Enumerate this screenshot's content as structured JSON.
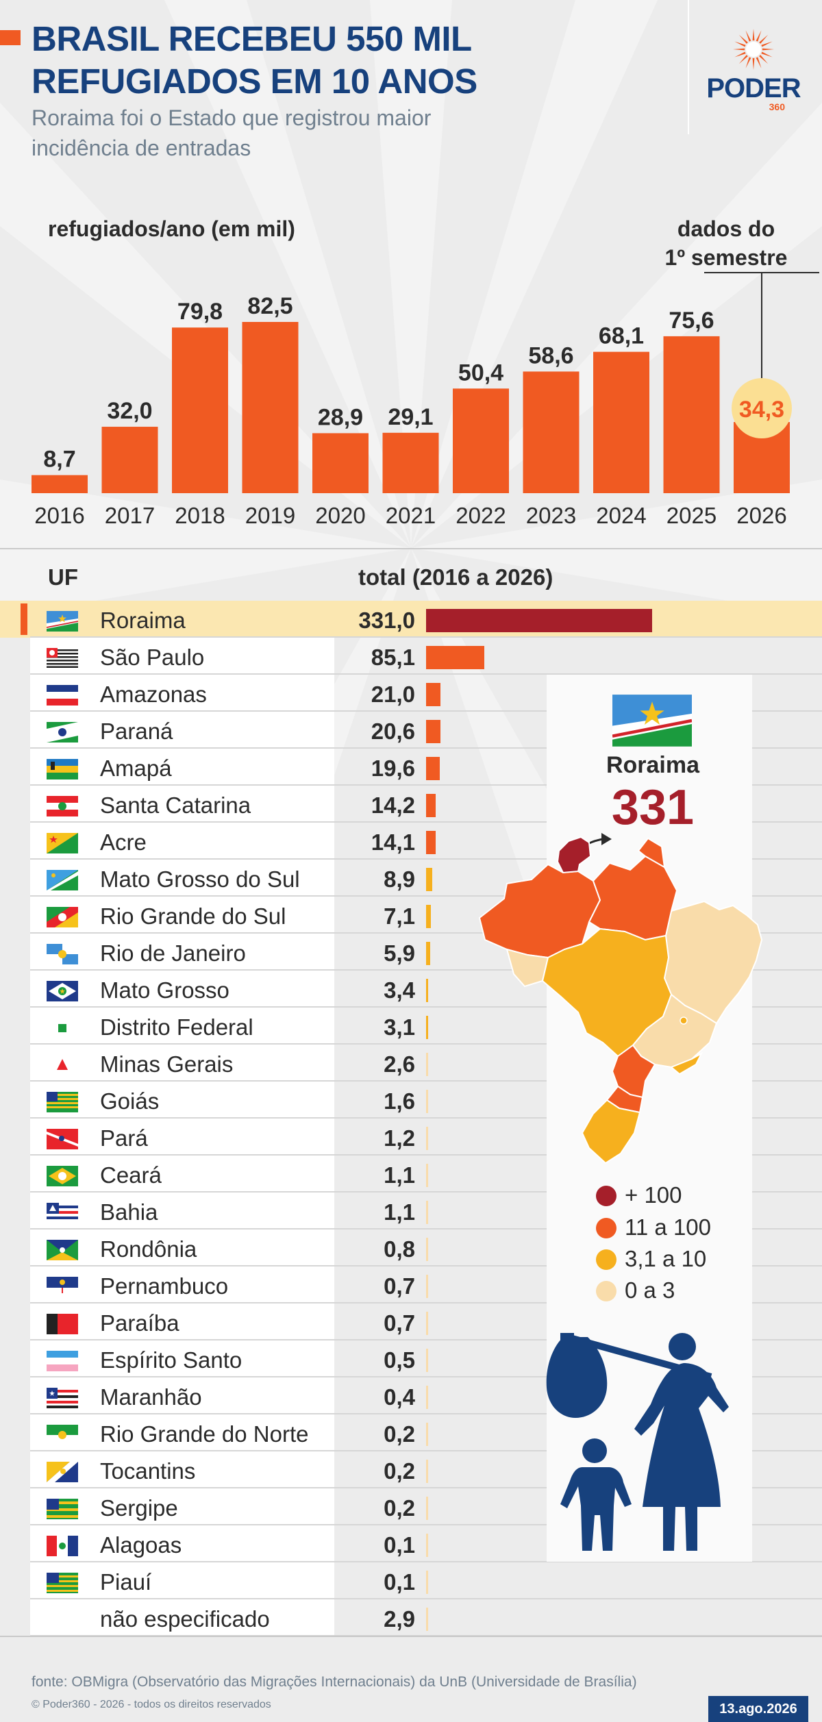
{
  "header": {
    "title_line1": "BRASIL RECEBEU 550 MIL",
    "title_line2": "REFUGIADOS EM 10 ANOS",
    "subtitle": "Roraima foi o Estado que registrou maior incidência de entradas",
    "logo_text": "PODER",
    "logo_sub": "360"
  },
  "chart_data": [
    {
      "type": "bar",
      "title": "refugiados/ano (em mil)",
      "categories": [
        "2016",
        "2017",
        "2018",
        "2019",
        "2020",
        "2021",
        "2022",
        "2023",
        "2024",
        "2025",
        "2026"
      ],
      "values": [
        8.7,
        32.0,
        79.8,
        82.5,
        28.9,
        29.1,
        50.4,
        58.6,
        68.1,
        75.6,
        34.3
      ],
      "value_labels": [
        "8,7",
        "32,0",
        "79,8",
        "82,5",
        "28,9",
        "29,1",
        "50,4",
        "58,6",
        "68,1",
        "75,6",
        "34,3"
      ],
      "annotation": {
        "category": "2026",
        "line1": "dados do",
        "line2": "1º semestre"
      },
      "ylim": [
        0,
        82.5
      ],
      "color": "#f05a22",
      "highlight_color": "#fbdf93"
    },
    {
      "type": "bar",
      "orientation": "horizontal",
      "title": "total (2016 a 2026)",
      "category_header": "UF",
      "rows": [
        {
          "uf": "Roraima",
          "label": "331,0",
          "value": 331.0,
          "flag": "roraima",
          "highlight": true
        },
        {
          "uf": "São Paulo",
          "label": "85,1",
          "value": 85.1,
          "flag": "sao-paulo"
        },
        {
          "uf": "Amazonas",
          "label": "21,0",
          "value": 21.0,
          "flag": "amazonas"
        },
        {
          "uf": "Paraná",
          "label": "20,6",
          "value": 20.6,
          "flag": "parana"
        },
        {
          "uf": "Amapá",
          "label": "19,6",
          "value": 19.6,
          "flag": "amapa"
        },
        {
          "uf": "Santa Catarina",
          "label": "14,2",
          "value": 14.2,
          "flag": "santa-catarina"
        },
        {
          "uf": "Acre",
          "label": "14,1",
          "value": 14.1,
          "flag": "acre"
        },
        {
          "uf": "Mato Grosso do Sul",
          "label": "8,9",
          "value": 8.9,
          "flag": "mato-grosso-do-sul"
        },
        {
          "uf": "Rio Grande do Sul",
          "label": "7,1",
          "value": 7.1,
          "flag": "rio-grande-do-sul"
        },
        {
          "uf": "Rio de Janeiro",
          "label": "5,9",
          "value": 5.9,
          "flag": "rio-de-janeiro"
        },
        {
          "uf": "Mato Grosso",
          "label": "3,4",
          "value": 3.4,
          "flag": "mato-grosso"
        },
        {
          "uf": "Distrito Federal",
          "label": "3,1",
          "value": 3.1,
          "flag": "distrito-federal"
        },
        {
          "uf": "Minas Gerais",
          "label": "2,6",
          "value": 2.6,
          "flag": "minas-gerais"
        },
        {
          "uf": "Goiás",
          "label": "1,6",
          "value": 1.6,
          "flag": "goias"
        },
        {
          "uf": "Pará",
          "label": "1,2",
          "value": 1.2,
          "flag": "para"
        },
        {
          "uf": "Ceará",
          "label": "1,1",
          "value": 1.1,
          "flag": "ceara"
        },
        {
          "uf": "Bahia",
          "label": "1,1",
          "value": 1.1,
          "flag": "bahia"
        },
        {
          "uf": "Rondônia",
          "label": "0,8",
          "value": 0.8,
          "flag": "rondonia"
        },
        {
          "uf": "Pernambuco",
          "label": "0,7",
          "value": 0.7,
          "flag": "pernambuco"
        },
        {
          "uf": "Paraíba",
          "label": "0,7",
          "value": 0.7,
          "flag": "paraiba"
        },
        {
          "uf": "Espírito Santo",
          "label": "0,5",
          "value": 0.5,
          "flag": "espirito-santo"
        },
        {
          "uf": "Maranhão",
          "label": "0,4",
          "value": 0.4,
          "flag": "maranhao"
        },
        {
          "uf": "Rio Grande do Norte",
          "label": "0,2",
          "value": 0.2,
          "flag": "rio-grande-do-norte"
        },
        {
          "uf": "Tocantins",
          "label": "0,2",
          "value": 0.2,
          "flag": "tocantins"
        },
        {
          "uf": "Sergipe",
          "label": "0,2",
          "value": 0.2,
          "flag": "sergipe"
        },
        {
          "uf": "Alagoas",
          "label": "0,1",
          "value": 0.1,
          "flag": "alagoas"
        },
        {
          "uf": "Piauí",
          "label": "0,1",
          "value": 0.1,
          "flag": "piaui"
        },
        {
          "uf": "não especificado",
          "label": "2,9",
          "value": 2.9,
          "flag": ""
        }
      ],
      "color_scale": {
        "above_100": "#a51f2a",
        "from_11": "#f05a22",
        "from_3_1": "#f6b01e",
        "up_to_3": "#f9dcaa"
      }
    }
  ],
  "map": {
    "name": "Roraima",
    "value": "331",
    "legend": [
      {
        "label": "+ 100",
        "color": "#a51f2a"
      },
      {
        "label": "11 a 100",
        "color": "#f05a22"
      },
      {
        "label": "3,1 a 10",
        "color": "#f6b01e"
      },
      {
        "label": "0 a 3",
        "color": "#f9dcaa"
      }
    ]
  },
  "footer": {
    "source": "fonte: OBMigra (Observatório das Migrações Internacionais) da UnB (Universidade de Brasília)",
    "copyright": "© Poder360 - 2026 - todos os direitos reservados",
    "date": "13.ago.2026"
  },
  "colors": {
    "navy": "#17417d",
    "orange": "#f05a22",
    "highlight_row": "#fbe7b1"
  }
}
